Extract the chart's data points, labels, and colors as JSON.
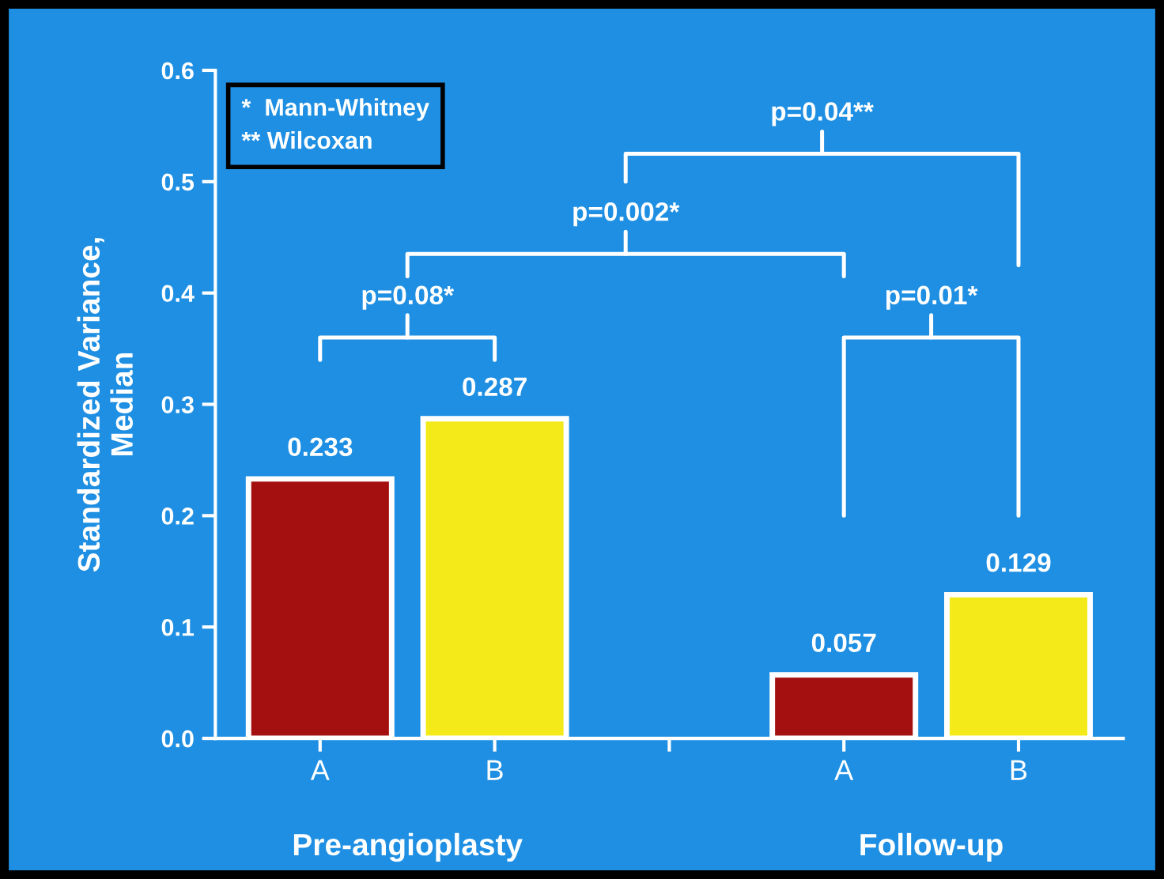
{
  "chart_data": {
    "type": "bar",
    "ylabel": "Standardized Variance,\nMedian",
    "categories": [
      "A",
      "B",
      null,
      "A",
      "B"
    ],
    "values": [
      0.233,
      0.287,
      null,
      0.057,
      0.129
    ],
    "colors": [
      "#a3100f",
      "#f4ea1a",
      null,
      "#a3100f",
      "#f4ea1a"
    ],
    "data_labels": true,
    "ylim": [
      0,
      0.6
    ],
    "yticks": [
      {
        "value": 0,
        "label": "0.0"
      },
      0.1,
      0.2,
      0.3,
      0.4,
      0.5,
      0.6
    ],
    "grid": false,
    "annotations": [
      "*  Mann-Whitney\n** Wilcoxan",
      "Pre-angioplasty",
      "Follow-up",
      "p=0.08*",
      "p=0.002*",
      "p=0.01*",
      "p=0.04**"
    ]
  }
}
